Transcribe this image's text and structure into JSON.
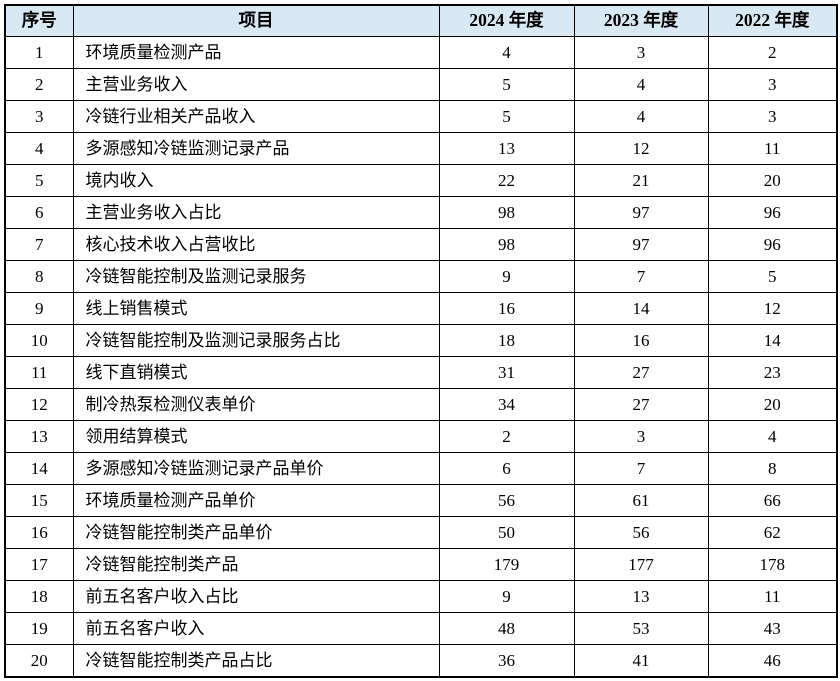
{
  "colors": {
    "header_bg": "#d9e9f3",
    "border": "#000000",
    "text": "#000000"
  },
  "table": {
    "headers": {
      "no": "序号",
      "item": "项目",
      "y2024": "2024 年度",
      "y2023": "2023 年度",
      "y2022": "2022 年度"
    },
    "rows": [
      {
        "no": "1",
        "item": "环境质量检测产品",
        "y2024": "4",
        "y2023": "3",
        "y2022": "2"
      },
      {
        "no": "2",
        "item": "主营业务收入",
        "y2024": "5",
        "y2023": "4",
        "y2022": "3"
      },
      {
        "no": "3",
        "item": "冷链行业相关产品收入",
        "y2024": "5",
        "y2023": "4",
        "y2022": "3"
      },
      {
        "no": "4",
        "item": "多源感知冷链监测记录产品",
        "y2024": "13",
        "y2023": "12",
        "y2022": "11"
      },
      {
        "no": "5",
        "item": "境内收入",
        "y2024": "22",
        "y2023": "21",
        "y2022": "20"
      },
      {
        "no": "6",
        "item": "主营业务收入占比",
        "y2024": "98",
        "y2023": "97",
        "y2022": "96"
      },
      {
        "no": "7",
        "item": "核心技术收入占营收比",
        "y2024": "98",
        "y2023": "97",
        "y2022": "96"
      },
      {
        "no": "8",
        "item": "冷链智能控制及监测记录服务",
        "y2024": "9",
        "y2023": "7",
        "y2022": "5"
      },
      {
        "no": "9",
        "item": "线上销售模式",
        "y2024": "16",
        "y2023": "14",
        "y2022": "12"
      },
      {
        "no": "10",
        "item": "冷链智能控制及监测记录服务占比",
        "y2024": "18",
        "y2023": "16",
        "y2022": "14"
      },
      {
        "no": "11",
        "item": "线下直销模式",
        "y2024": "31",
        "y2023": "27",
        "y2022": "23"
      },
      {
        "no": "12",
        "item": "制冷热泵检测仪表单价",
        "y2024": "34",
        "y2023": "27",
        "y2022": "20"
      },
      {
        "no": "13",
        "item": "领用结算模式",
        "y2024": "2",
        "y2023": "3",
        "y2022": "4"
      },
      {
        "no": "14",
        "item": "多源感知冷链监测记录产品单价",
        "y2024": "6",
        "y2023": "7",
        "y2022": "8"
      },
      {
        "no": "15",
        "item": "环境质量检测产品单价",
        "y2024": "56",
        "y2023": "61",
        "y2022": "66"
      },
      {
        "no": "16",
        "item": "冷链智能控制类产品单价",
        "y2024": "50",
        "y2023": "56",
        "y2022": "62"
      },
      {
        "no": "17",
        "item": "冷链智能控制类产品",
        "y2024": "179",
        "y2023": "177",
        "y2022": "178"
      },
      {
        "no": "18",
        "item": "前五名客户收入占比",
        "y2024": "9",
        "y2023": "13",
        "y2022": "11"
      },
      {
        "no": "19",
        "item": "前五名客户收入",
        "y2024": "48",
        "y2023": "53",
        "y2022": "43"
      },
      {
        "no": "20",
        "item": "冷链智能控制类产品占比",
        "y2024": "36",
        "y2023": "41",
        "y2022": "46"
      }
    ]
  }
}
